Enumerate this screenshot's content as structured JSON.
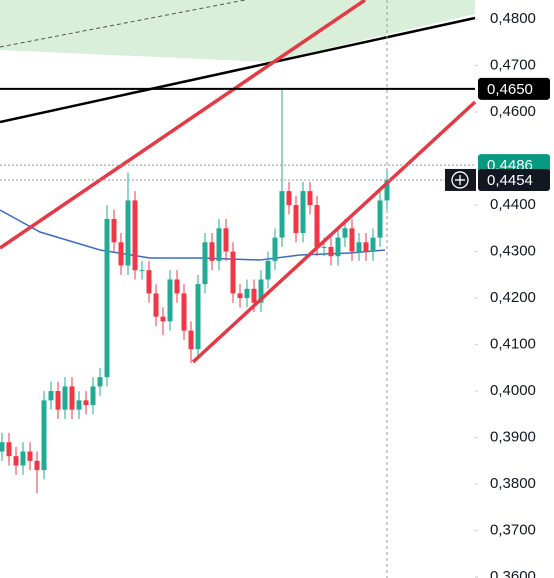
{
  "chart_data": {
    "type": "candlestick",
    "open": [
      0.387,
      0.389,
      0.386,
      0.384,
      0.387,
      0.385,
      0.383,
      0.398,
      0.4,
      0.396,
      0.401,
      0.396,
      0.398,
      0.397,
      0.401,
      0.403,
      0.437,
      0.432,
      0.427,
      0.441,
      0.426,
      0.426,
      0.421,
      0.416,
      0.415,
      0.424,
      0.421,
      0.413,
      0.409,
      0.423,
      0.432,
      0.428,
      0.435,
      0.43,
      0.421,
      0.42,
      0.422,
      0.419,
      0.424,
      0.428,
      0.433,
      0.443,
      0.44,
      0.434,
      0.443,
      0.44,
      0.431,
      0.431,
      0.429,
      0.433,
      0.435,
      0.43,
      0.432,
      0.43,
      0.433,
      0.441
    ],
    "high": [
      0.391,
      0.391,
      0.388,
      0.389,
      0.389,
      0.387,
      0.4,
      0.402,
      0.402,
      0.403,
      0.403,
      0.4,
      0.4,
      0.403,
      0.405,
      0.44,
      0.439,
      0.434,
      0.447,
      0.443,
      0.428,
      0.428,
      0.423,
      0.418,
      0.426,
      0.426,
      0.423,
      0.415,
      0.425,
      0.434,
      0.434,
      0.437,
      0.437,
      0.432,
      0.423,
      0.424,
      0.424,
      0.426,
      0.43,
      0.435,
      0.465,
      0.445,
      0.442,
      0.445,
      0.445,
      0.442,
      0.433,
      0.433,
      0.435,
      0.437,
      0.437,
      0.434,
      0.434,
      0.435,
      0.443,
      0.4475
    ],
    "low": [
      0.385,
      0.384,
      0.382,
      0.382,
      0.383,
      0.378,
      0.381,
      0.396,
      0.394,
      0.394,
      0.394,
      0.394,
      0.395,
      0.395,
      0.399,
      0.401,
      0.43,
      0.425,
      0.425,
      0.424,
      0.424,
      0.419,
      0.414,
      0.412,
      0.413,
      0.419,
      0.411,
      0.406,
      0.407,
      0.421,
      0.426,
      0.426,
      0.428,
      0.419,
      0.418,
      0.418,
      0.417,
      0.417,
      0.422,
      0.426,
      0.431,
      0.438,
      0.432,
      0.432,
      0.438,
      0.429,
      0.429,
      0.427,
      0.427,
      0.431,
      0.428,
      0.428,
      0.428,
      0.428,
      0.431,
      0.439
    ],
    "close": [
      0.389,
      0.386,
      0.384,
      0.387,
      0.385,
      0.383,
      0.398,
      0.4,
      0.396,
      0.401,
      0.396,
      0.398,
      0.397,
      0.401,
      0.403,
      0.437,
      0.432,
      0.427,
      0.441,
      0.426,
      0.426,
      0.421,
      0.416,
      0.415,
      0.424,
      0.421,
      0.413,
      0.409,
      0.423,
      0.432,
      0.428,
      0.435,
      0.43,
      0.421,
      0.42,
      0.422,
      0.419,
      0.424,
      0.428,
      0.433,
      0.443,
      0.44,
      0.434,
      0.443,
      0.44,
      0.431,
      0.431,
      0.429,
      0.433,
      0.435,
      0.43,
      0.432,
      0.43,
      0.433,
      0.441,
      0.4454
    ],
    "up_color": "#22ab94",
    "down_color": "#f23645",
    "ylim": [
      0.3598,
      0.4841
    ],
    "yticks": [
      {
        "value": 0.36,
        "label": "0,3600"
      },
      {
        "value": 0.37,
        "label": "0,3700"
      },
      {
        "value": 0.38,
        "label": "0,3800"
      },
      {
        "value": 0.39,
        "label": "0,3900"
      },
      {
        "value": 0.4,
        "label": "0,4000"
      },
      {
        "value": 0.41,
        "label": "0,4100"
      },
      {
        "value": 0.42,
        "label": "0,4200"
      },
      {
        "value": 0.43,
        "label": "0,4300"
      },
      {
        "value": 0.44,
        "label": "0,4400"
      },
      {
        "value": 0.46,
        "label": "0,4600"
      },
      {
        "value": 0.47,
        "label": "0,4700"
      },
      {
        "value": 0.48,
        "label": "0,4800"
      }
    ],
    "price_lines": [
      {
        "value": 0.4486,
        "label": "0,4486",
        "color": "#089981"
      },
      {
        "value": 0.465,
        "label": "0,4650",
        "color": "#000000"
      },
      {
        "value": 0.4454,
        "label": "0,4454",
        "color": "#131722"
      }
    ]
  }
}
